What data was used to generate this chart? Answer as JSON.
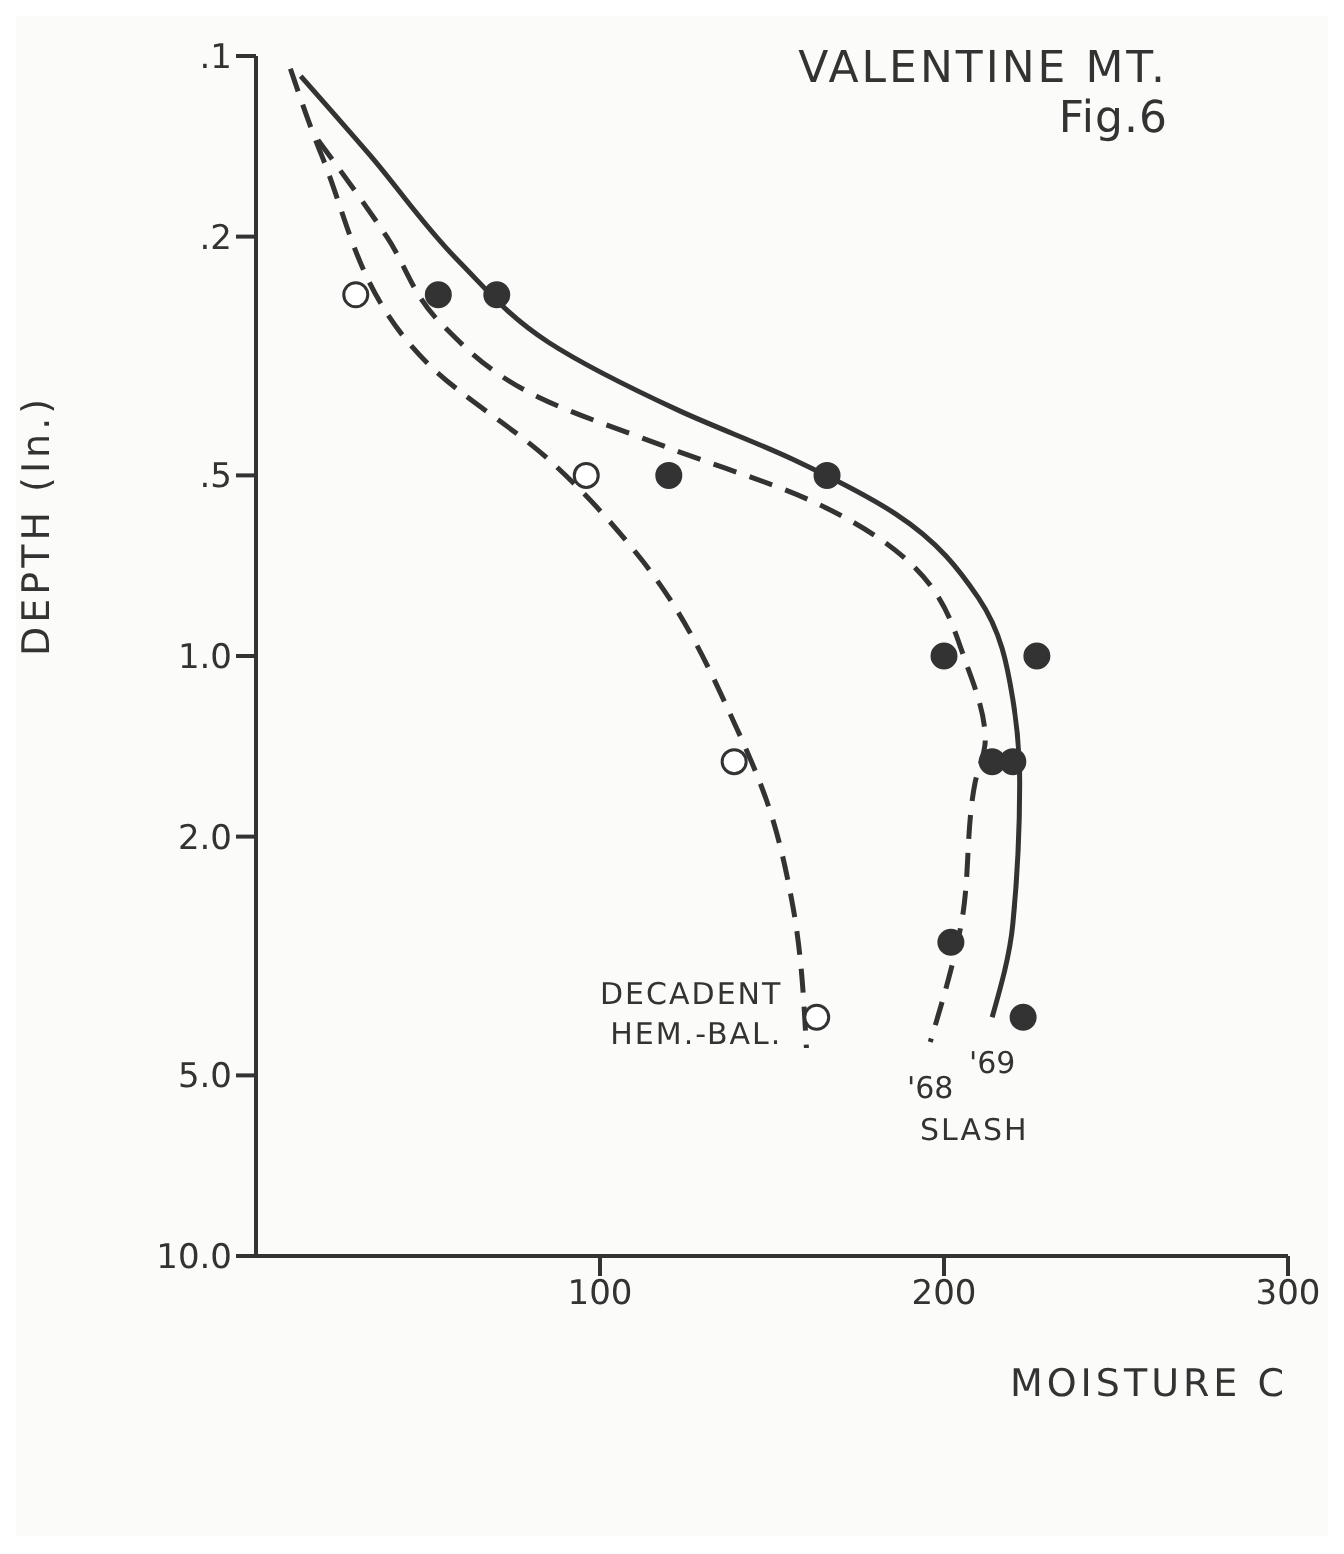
{
  "chart_data": {
    "type": "scatter",
    "title": "VALENTINE MT.",
    "subtitle": "Fig.6",
    "xlabel": "MOISTURE C",
    "ylabel": "DEPTH (In.)",
    "annotations": [
      "SLASH"
    ],
    "xlim": [
      0,
      300
    ],
    "xticks": [
      100,
      200,
      300
    ],
    "ylim": [
      10,
      0.1
    ],
    "log": "y",
    "yticks": [
      {
        "value": 0.1,
        "label": ".1"
      },
      {
        "value": 0.2,
        "label": ".2"
      },
      {
        "value": 0.5,
        "label": ".5"
      },
      {
        "value": 1,
        "label": "1.0"
      },
      {
        "value": 2,
        "label": "2.0"
      },
      {
        "value": 5,
        "label": "5.0"
      },
      {
        "value": 10,
        "label": "10.0"
      }
    ],
    "grid": false,
    "legend": false,
    "series": [
      {
        "name": "DECADENT HEM.-BAL.",
        "type": "line",
        "color": "#333333",
        "line_style": "dashed",
        "x": [
          10,
          19,
          51,
          85,
          112,
          140,
          149,
          156,
          160
        ],
        "values": [
          0.105,
          0.146,
          0.33,
          0.47,
          0.69,
          1.33,
          1.78,
          2.6,
          4.5
        ]
      },
      {
        "name": "'68",
        "type": "line",
        "color": "#333333",
        "line_style": "dashed",
        "x": [
          18,
          38,
          54,
          82,
          120,
          161,
          189,
          207,
          212,
          209,
          205,
          196
        ],
        "values": [
          0.138,
          0.2,
          0.28,
          0.37,
          0.45,
          0.55,
          0.69,
          1.05,
          1.38,
          1.63,
          2.8,
          4.4
        ]
      },
      {
        "name": "'69",
        "type": "line",
        "color": "#333333",
        "line_style": "solid",
        "x": [
          13,
          33,
          59,
          85,
          123,
          156,
          186,
          210,
          220,
          222,
          220,
          214
        ],
        "values": [
          0.108,
          0.146,
          0.22,
          0.3,
          0.39,
          0.47,
          0.58,
          0.8,
          1.18,
          1.63,
          2.8,
          4
        ]
      },
      {
        "type": "scatter",
        "color": "#ffffff",
        "marker": "circle",
        "x": [
          29,
          96,
          139,
          163
        ],
        "values": [
          0.25,
          0.5,
          1.5,
          4
        ]
      },
      {
        "type": "scatter",
        "color": "#333333",
        "marker": "circle",
        "x": [
          53,
          120,
          200,
          214,
          202
        ],
        "values": [
          0.25,
          0.5,
          1,
          1.5,
          3
        ]
      },
      {
        "type": "scatter",
        "color": "#333333",
        "marker": "circle",
        "x": [
          70,
          166,
          227,
          220,
          223
        ],
        "values": [
          0.25,
          0.5,
          1,
          1.5,
          4
        ]
      }
    ]
  }
}
